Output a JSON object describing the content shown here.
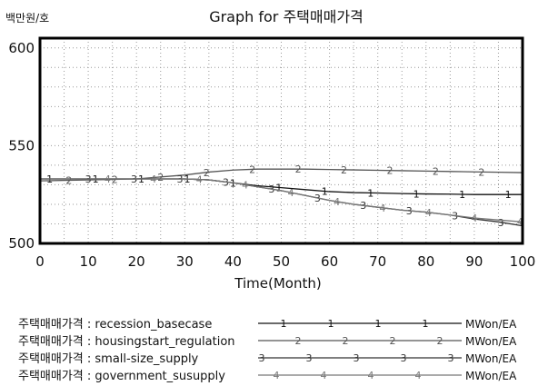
{
  "chart_data": {
    "type": "line",
    "title": "Graph for 주택매매가격",
    "ylabel": "백만원/호",
    "xlabel": "Time(Month)",
    "xlim": [
      0,
      100
    ],
    "ylim": [
      500,
      605
    ],
    "xticks": [
      0,
      10,
      20,
      30,
      40,
      50,
      60,
      70,
      80,
      90,
      100
    ],
    "yticks": [
      500,
      550,
      600
    ],
    "grid": true,
    "legend_position": "bottom",
    "series": [
      {
        "name": "주택매매가격 : recession_basecase",
        "marker": "1",
        "unit": "MWon/EA",
        "color": "#111111",
        "x": [
          0,
          10,
          20,
          30,
          35,
          40,
          45,
          50,
          55,
          60,
          65,
          70,
          75,
          80,
          85,
          90,
          95,
          100
        ],
        "y": [
          533,
          533,
          533,
          533,
          532.5,
          531,
          529.5,
          528.5,
          527.5,
          526.5,
          526,
          525.8,
          525.5,
          525.3,
          525.2,
          525,
          525,
          525
        ]
      },
      {
        "name": "주택매매가격 : housingstart_regulation",
        "marker": "2",
        "unit": "MWon/EA",
        "color": "#555555",
        "x": [
          0,
          10,
          20,
          30,
          35,
          40,
          45,
          50,
          55,
          60,
          65,
          70,
          75,
          80,
          85,
          90,
          95,
          100
        ],
        "y": [
          532,
          532.5,
          533,
          535,
          536.5,
          537.5,
          538,
          538,
          538,
          537.8,
          537.6,
          537.4,
          537.2,
          537,
          536.8,
          536.6,
          536.4,
          536.2
        ]
      },
      {
        "name": "주택매매가격 : small-size_supply",
        "marker": "3",
        "unit": "MWon/EA",
        "color": "#333333",
        "x": [
          0,
          10,
          20,
          30,
          35,
          40,
          45,
          50,
          55,
          60,
          65,
          70,
          75,
          80,
          85,
          90,
          95,
          100
        ],
        "y": [
          533,
          533,
          533,
          533,
          532.5,
          531,
          529,
          527,
          524.5,
          522,
          520,
          518.5,
          517,
          516,
          514.5,
          512.5,
          511,
          509
        ]
      },
      {
        "name": "주택매매가격 : government_susupply",
        "marker": "4",
        "unit": "MWon/EA",
        "color": "#777777",
        "x": [
          0,
          10,
          20,
          30,
          35,
          40,
          45,
          50,
          55,
          60,
          65,
          70,
          75,
          80,
          85,
          90,
          95,
          100
        ],
        "y": [
          533,
          533,
          533,
          533,
          532.5,
          531,
          529,
          527,
          524.5,
          522,
          520,
          518.5,
          517,
          516,
          514.5,
          513,
          512,
          511
        ]
      }
    ]
  }
}
